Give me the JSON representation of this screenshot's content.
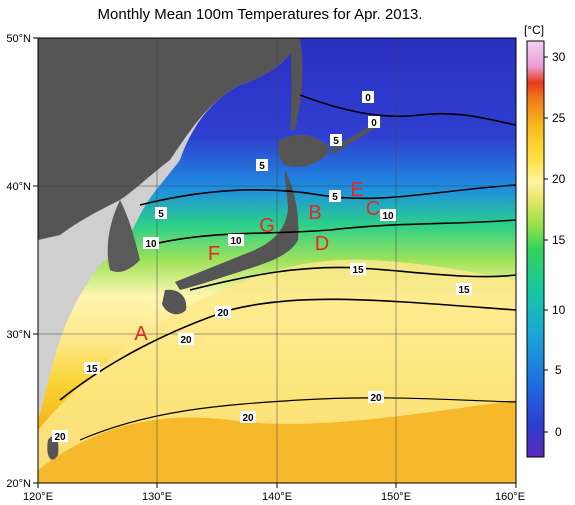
{
  "title": "Monthly Mean 100m Temperatures for Apr. 2013.",
  "map": {
    "lon_range": [
      120,
      160
    ],
    "lat_range": [
      20,
      50
    ],
    "lon_ticks": [
      "120°E",
      "130°E",
      "140°E",
      "150°E",
      "160°E"
    ],
    "lat_ticks": [
      "50°N",
      "40°N",
      "30°N",
      "20°N"
    ],
    "grid": "on",
    "land_color": "#555555",
    "foreign_land_color": "#cfcfcf"
  },
  "point_labels": [
    "A",
    "B",
    "C",
    "D",
    "E",
    "F",
    "G"
  ],
  "isotherm_labels": [
    "0",
    "0",
    "5",
    "5",
    "5",
    "5",
    "10",
    "10",
    "10",
    "15",
    "15",
    "15",
    "20",
    "20",
    "20",
    "20",
    "20"
  ],
  "colorbar": {
    "unit": "[°C]",
    "ticks": [
      "30",
      "25",
      "20",
      "15",
      "10",
      "5",
      "0"
    ],
    "range": [
      -3,
      31
    ],
    "colors": [
      "#5a2ab8",
      "#2c3fd0",
      "#1f6fe0",
      "#19a9d4",
      "#17c7a0",
      "#35d35a",
      "#9be24a",
      "#e6e66a",
      "#fff6a0",
      "#ffe040",
      "#f7b81a",
      "#f07a1a",
      "#e83a1a",
      "#e8a0d8",
      "#f6d0f0"
    ]
  }
}
